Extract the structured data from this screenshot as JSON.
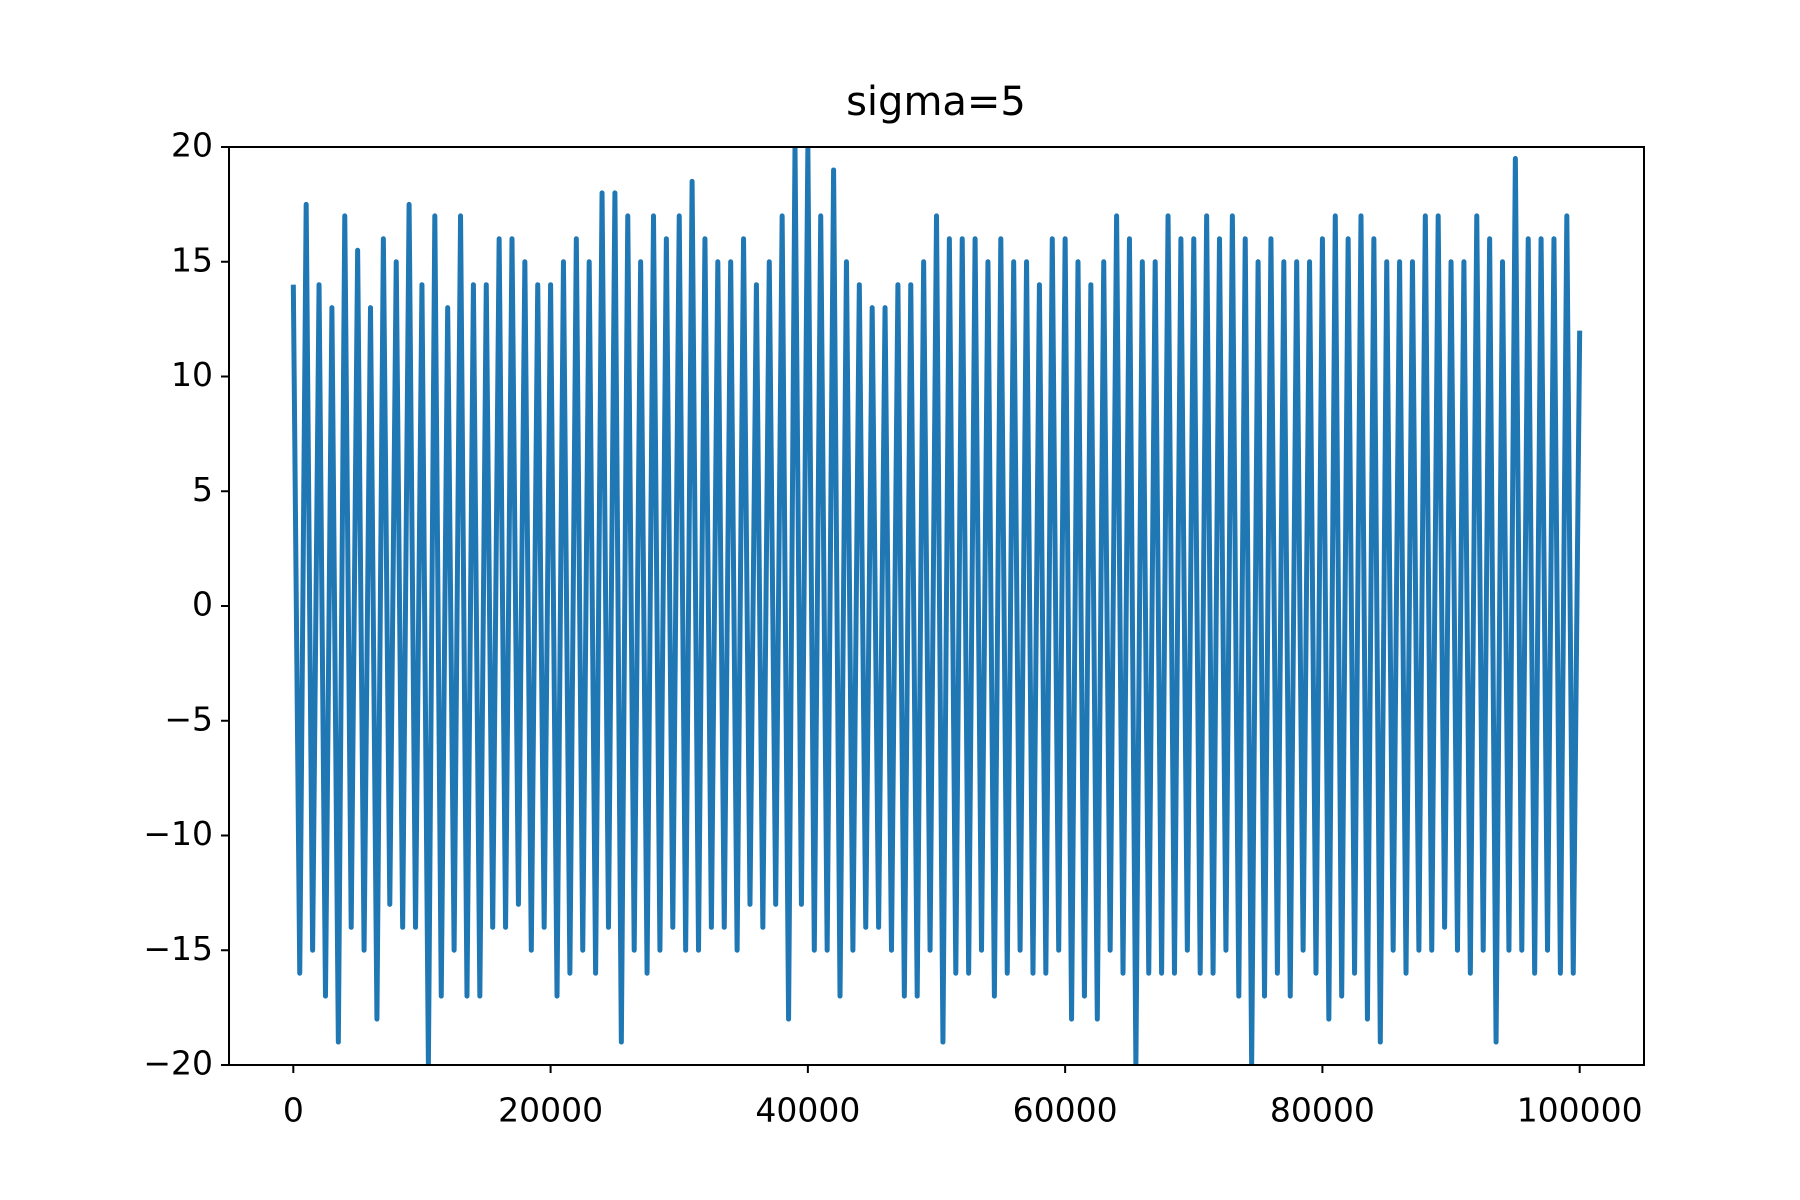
{
  "chart_data": {
    "type": "line",
    "title": "sigma=5",
    "x": [
      0,
      500,
      1000,
      1500,
      2000,
      2500,
      3000,
      3500,
      4000,
      4500,
      5000,
      5500,
      6000,
      6500,
      7000,
      7500,
      8000,
      8500,
      9000,
      9500,
      10000,
      10500,
      11000,
      11500,
      12000,
      12500,
      13000,
      13500,
      14000,
      14500,
      15000,
      15500,
      16000,
      16500,
      17000,
      17500,
      18000,
      18500,
      19000,
      19500,
      20000,
      20500,
      21000,
      21500,
      22000,
      22500,
      23000,
      23500,
      24000,
      24500,
      25000,
      25500,
      26000,
      26500,
      27000,
      27500,
      28000,
      28500,
      29000,
      29500,
      30000,
      30500,
      31000,
      31500,
      32000,
      32500,
      33000,
      33500,
      34000,
      34500,
      35000,
      35500,
      36000,
      36500,
      37000,
      37500,
      38000,
      38500,
      39000,
      39500,
      40000,
      40500,
      41000,
      41500,
      42000,
      42500,
      43000,
      43500,
      44000,
      44500,
      45000,
      45500,
      46000,
      46500,
      47000,
      47500,
      48000,
      48500,
      49000,
      49500,
      50000,
      50500,
      51000,
      51500,
      52000,
      52500,
      53000,
      53500,
      54000,
      54500,
      55000,
      55500,
      56000,
      56500,
      57000,
      57500,
      58000,
      58500,
      59000,
      59500,
      60000,
      60500,
      61000,
      61500,
      62000,
      62500,
      63000,
      63500,
      64000,
      64500,
      65000,
      65500,
      66000,
      66500,
      67000,
      67500,
      68000,
      68500,
      69000,
      69500,
      70000,
      70500,
      71000,
      71500,
      72000,
      72500,
      73000,
      73500,
      74000,
      74500,
      75000,
      75500,
      76000,
      76500,
      77000,
      77500,
      78000,
      78500,
      79000,
      79500,
      80000,
      80500,
      81000,
      81500,
      82000,
      82500,
      83000,
      83500,
      84000,
      84500,
      85000,
      85500,
      86000,
      86500,
      87000,
      87500,
      88000,
      88500,
      89000,
      89500,
      90000,
      90500,
      91000,
      91500,
      92000,
      92500,
      93000,
      93500,
      94000,
      94500,
      95000,
      95500,
      96000,
      96500,
      97000,
      97500,
      98000,
      98500,
      99000,
      99500,
      100000
    ],
    "series": [
      {
        "color": "#1f77b4",
        "values": [
          14,
          -16,
          17.5,
          -15,
          14,
          -17,
          13,
          -19,
          17,
          -14,
          15.5,
          -15,
          13,
          -18,
          16,
          -13,
          15,
          -14,
          17.5,
          -14,
          14,
          -20,
          17,
          -17,
          13,
          -15,
          17,
          -17,
          14,
          -17,
          14,
          -14,
          16,
          -14,
          16,
          -13,
          15,
          -15,
          14,
          -14,
          14,
          -17,
          15,
          -16,
          16,
          -15,
          15,
          -16,
          18,
          -14,
          18,
          -19,
          17,
          -15,
          15,
          -16,
          17,
          -15,
          16,
          -14,
          17,
          -15,
          18.5,
          -15,
          16,
          -14,
          15,
          -14,
          15,
          -15,
          16,
          -13,
          14,
          -14,
          15,
          -13,
          17,
          -18,
          20,
          -13,
          20,
          -15,
          17,
          -15,
          19,
          -17,
          15,
          -15,
          14,
          -14,
          13,
          -14,
          13,
          -15,
          14,
          -17,
          14,
          -17,
          15,
          -15,
          17,
          -19,
          16,
          -16,
          16,
          -16,
          16,
          -15,
          15,
          -17,
          16,
          -16,
          15,
          -15,
          15,
          -16,
          14,
          -16,
          16,
          -15,
          16,
          -18,
          15,
          -17,
          14,
          -18,
          15,
          -15,
          17,
          -16,
          16,
          -20,
          15,
          -16,
          15,
          -16,
          17,
          -16,
          16,
          -15,
          16,
          -16,
          17,
          -16,
          16,
          -15,
          17,
          -17,
          16,
          -20,
          15,
          -17,
          16,
          -16,
          15,
          -17,
          15,
          -15,
          15,
          -16,
          16,
          -18,
          17,
          -17,
          16,
          -16,
          17,
          -18,
          16,
          -19,
          15,
          -15,
          15,
          -16,
          15,
          -15,
          17,
          -15,
          17,
          -14,
          15,
          -15,
          15,
          -16,
          17,
          -15,
          16,
          -19,
          15,
          -15,
          19.5,
          -15,
          16,
          -16,
          16,
          -15,
          16,
          -16,
          17,
          -16,
          12
        ]
      }
    ],
    "xlim": [
      -5000,
      105000
    ],
    "xticks": [
      0,
      20000,
      40000,
      60000,
      80000,
      100000
    ],
    "ylim": [
      -20,
      20
    ],
    "yticks": [
      {
        "value": -20,
        "label": "−20"
      },
      {
        "value": -15,
        "label": "−15"
      },
      {
        "value": -10,
        "label": "−10"
      },
      {
        "value": -5,
        "label": "−5"
      },
      0,
      5,
      10,
      15,
      20
    ]
  }
}
